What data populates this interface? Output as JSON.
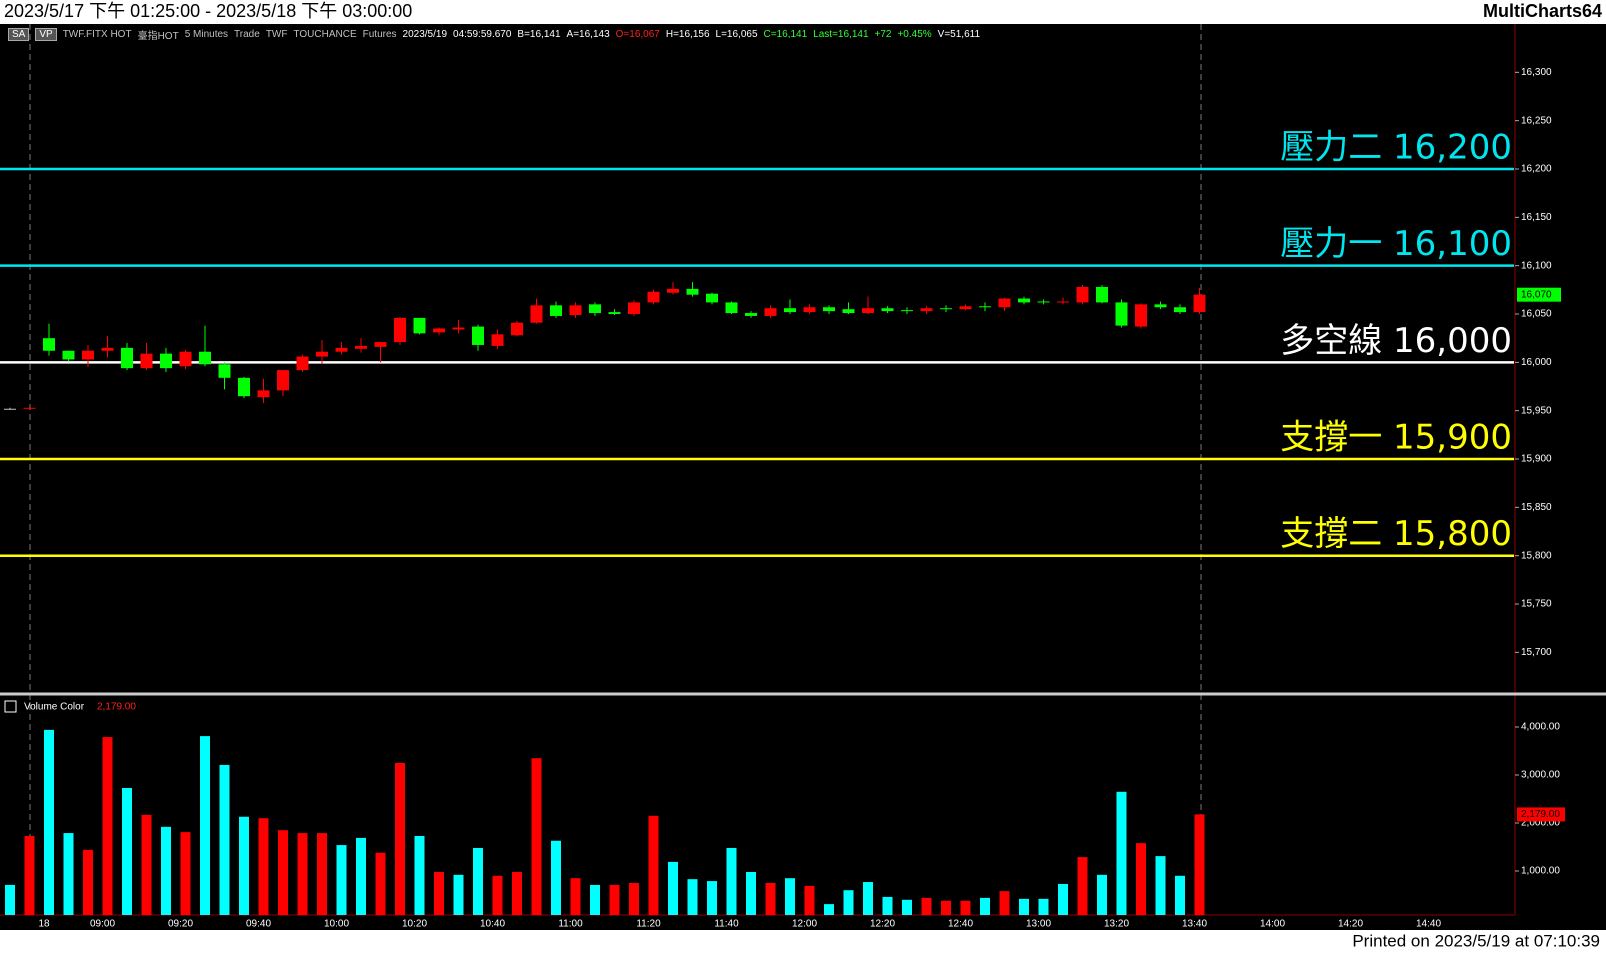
{
  "header": {
    "range": "2023/5/17 下午 01:25:00 - 2023/5/18 下午 03:00:00",
    "app": "MultiCharts64"
  },
  "info_bar": [
    {
      "text": "SA",
      "color": "#ffffff",
      "boxed": true
    },
    {
      "text": "VP",
      "color": "#ffffff",
      "boxed": true
    },
    {
      "text": "TWF.FITX HOT",
      "color": "#c0c0c0"
    },
    {
      "text": "臺指HOT",
      "color": "#c0c0c0"
    },
    {
      "text": "5 Minutes",
      "color": "#c0c0c0"
    },
    {
      "text": "Trade",
      "color": "#c0c0c0"
    },
    {
      "text": "TWF",
      "color": "#c0c0c0"
    },
    {
      "text": "TOUCHANCE",
      "color": "#c0c0c0"
    },
    {
      "text": "Futures",
      "color": "#c0c0c0"
    },
    {
      "text": "2023/5/19",
      "color": "#ffffff"
    },
    {
      "text": "04:59:59.670",
      "color": "#ffffff"
    },
    {
      "text": "B=16,141",
      "color": "#ffffff"
    },
    {
      "text": "A=16,143",
      "color": "#ffffff"
    },
    {
      "text": "O=16,067",
      "color": "#ff2020"
    },
    {
      "text": "H=16,156",
      "color": "#ffffff"
    },
    {
      "text": "L=16,065",
      "color": "#ffffff"
    },
    {
      "text": "C=16,141",
      "color": "#33ff33"
    },
    {
      "text": "Last=16,141",
      "color": "#33ff33"
    },
    {
      "text": "+72",
      "color": "#33ff33"
    },
    {
      "text": "+0.45%",
      "color": "#33ff33"
    },
    {
      "text": "V=51,611",
      "color": "#ffffff"
    }
  ],
  "footer": "Printed on 2023/5/19 at 07:10:39",
  "chart_data": [
    {
      "type": "candlestick",
      "categories": [
        null,
        null,
        "18",
        null,
        null,
        "09:00",
        null,
        null,
        null,
        "09:20",
        null,
        null,
        null,
        "09:40",
        null,
        null,
        null,
        "10:00",
        null,
        null,
        null,
        "10:20",
        null,
        null,
        null,
        "10:40",
        null,
        null,
        null,
        "11:00",
        null,
        null,
        null,
        "11:20",
        null,
        null,
        null,
        "11:40",
        null,
        null,
        null,
        "12:00",
        null,
        null,
        null,
        "12:20",
        null,
        null,
        null,
        "12:40",
        null,
        null,
        null,
        "13:00",
        null,
        null,
        null,
        "13:20",
        null,
        null,
        null,
        "13:40",
        null,
        null,
        null,
        "14:00",
        null,
        null,
        null,
        "14:20",
        null,
        null,
        null,
        "14:40"
      ],
      "open": [
        15952,
        15952,
        16025,
        16012,
        16003,
        16012,
        16015,
        15994,
        16009,
        15996,
        16011,
        15998,
        15984,
        15964,
        15971,
        15992,
        16006,
        16011,
        16014,
        16016,
        16021,
        16046,
        16031,
        16034,
        16037,
        16017,
        16028,
        16041,
        16059,
        16049,
        16060,
        16052,
        16050,
        16062,
        16072,
        16076,
        16071,
        16062,
        16051,
        16048,
        16056,
        16052,
        16057,
        16055,
        16051,
        16056,
        16054,
        16053,
        16056,
        16055,
        16058,
        16057,
        16066,
        16063,
        16062,
        16062,
        16078,
        16062,
        16037,
        16060,
        16057,
        16052,
        null,
        null,
        null,
        null,
        null,
        null,
        null,
        null,
        null,
        null,
        null,
        null
      ],
      "high": [
        15953,
        15954,
        16040,
        16012,
        16018,
        16027,
        16020,
        16020,
        16015,
        16013,
        16038,
        16000,
        15985,
        15983,
        15992,
        16008,
        16023,
        16021,
        16025,
        16021,
        16047,
        16046,
        16036,
        16044,
        16039,
        16034,
        16043,
        16066,
        16063,
        16062,
        16062,
        16055,
        16064,
        16075,
        16083,
        16083,
        16072,
        16063,
        16053,
        16059,
        16065,
        16060,
        16059,
        16062,
        16068,
        16058,
        16057,
        16058,
        16059,
        16060,
        16062,
        16067,
        16068,
        16065,
        16067,
        16080,
        16080,
        16065,
        16061,
        16063,
        16060,
        16077,
        null,
        null,
        null,
        null,
        null,
        null,
        null,
        null,
        null,
        null,
        null,
        null
      ],
      "low": [
        15951,
        15951,
        16007,
        16001,
        15995,
        16005,
        15992,
        15992,
        15990,
        15993,
        15996,
        15972,
        15963,
        15958,
        15965,
        15990,
        15998,
        16008,
        16010,
        16000,
        16018,
        16029,
        16028,
        16030,
        16012,
        16014,
        16027,
        16040,
        16046,
        16046,
        16048,
        16049,
        16048,
        16060,
        16070,
        16068,
        16060,
        16050,
        16046,
        16046,
        16050,
        16050,
        16050,
        16050,
        16050,
        16051,
        16050,
        16050,
        16052,
        16054,
        16053,
        16053,
        16060,
        16060,
        16060,
        16060,
        16061,
        16036,
        16035,
        16055,
        16050,
        16050,
        null,
        null,
        null,
        null,
        null,
        null,
        null,
        null,
        null,
        null,
        null,
        null
      ],
      "close": [
        15952,
        15953,
        16012,
        16003,
        16012,
        16015,
        15994,
        16009,
        15994,
        16011,
        15998,
        15984,
        15965,
        15971,
        15992,
        16006,
        16011,
        16015,
        16017,
        16021,
        16046,
        16030,
        16035,
        16036,
        16018,
        16029,
        16041,
        16059,
        16048,
        16059,
        16051,
        16050,
        16062,
        16073,
        16076,
        16070,
        16062,
        16051,
        16048,
        16056,
        16052,
        16057,
        16053,
        16051,
        16056,
        16053,
        16053,
        16056,
        16055,
        16058,
        16057,
        16066,
        16062,
        16062,
        16063,
        16078,
        16062,
        16038,
        16060,
        16057,
        16052,
        16070,
        null,
        null,
        null,
        null,
        null,
        null,
        null,
        null,
        null,
        null,
        null,
        null
      ],
      "up_color": "#ff0000",
      "down_color": "#00ff00",
      "flat_color": "#c0c0c0",
      "ylim": [
        15659,
        16350
      ],
      "yticks": [
        {
          "value": 15700,
          "label": "15,700"
        },
        {
          "value": 15750,
          "label": "15,750"
        },
        {
          "value": 15800,
          "label": "15,800"
        },
        {
          "value": 15850,
          "label": "15,850"
        },
        {
          "value": 15900,
          "label": "15,900"
        },
        {
          "value": 15950,
          "label": "15,950"
        },
        {
          "value": 16000,
          "label": "16,000"
        },
        {
          "value": 16050,
          "label": "16,050"
        },
        {
          "value": 16100,
          "label": "16,100"
        },
        {
          "value": 16150,
          "label": "16,150"
        },
        {
          "value": 16200,
          "label": "16,200"
        },
        {
          "value": 16250,
          "label": "16,250"
        },
        {
          "value": 16300,
          "label": "16,300"
        }
      ],
      "levels": [
        {
          "value": 16200,
          "label": "壓力二 16,200",
          "color": "#00e5ee"
        },
        {
          "value": 16100,
          "label": "壓力一 16,100",
          "color": "#00e5ee"
        },
        {
          "value": 16000,
          "label": "多空線 16,000",
          "color": "#ffffff"
        },
        {
          "value": 15900,
          "label": "支撐一 15,900",
          "color": "#ffff00"
        },
        {
          "value": 15800,
          "label": "支撐二 15,800",
          "color": "#ffff00"
        }
      ],
      "last_label": "16,070",
      "last_color": "#00ff00"
    },
    {
      "type": "bar",
      "title": "Volume Color",
      "last_label": "2,179.00",
      "last_color": "#ff0000",
      "values": [
        710,
        1730,
        3940,
        1790,
        1440,
        3790,
        2730,
        2170,
        1920,
        1810,
        3810,
        3210,
        2130,
        2100,
        1850,
        1790,
        1790,
        1540,
        1690,
        1380,
        3250,
        1730,
        980,
        920,
        1480,
        900,
        980,
        3350,
        1630,
        850,
        710,
        710,
        750,
        2150,
        1190,
        830,
        790,
        1480,
        980,
        750,
        850,
        690,
        310,
        600,
        770,
        460,
        400,
        440,
        380,
        380,
        440,
        580,
        420,
        420,
        730,
        1290,
        920,
        2650,
        1580,
        1310,
        900,
        2179,
        null,
        null,
        null,
        null,
        null,
        null,
        null,
        null,
        null,
        null,
        null,
        null
      ],
      "colors": [
        "#00ffff",
        "#ff0000",
        "#00ffff",
        "#00ffff",
        "#ff0000",
        "#ff0000",
        "#00ffff",
        "#ff0000",
        "#00ffff",
        "#ff0000",
        "#00ffff",
        "#00ffff",
        "#00ffff",
        "#ff0000",
        "#ff0000",
        "#ff0000",
        "#ff0000",
        "#00ffff",
        "#00ffff",
        "#ff0000",
        "#ff0000",
        "#00ffff",
        "#ff0000",
        "#00ffff",
        "#00ffff",
        "#ff0000",
        "#ff0000",
        "#ff0000",
        "#00ffff",
        "#ff0000",
        "#00ffff",
        "#ff0000",
        "#ff0000",
        "#ff0000",
        "#00ffff",
        "#00ffff",
        "#00ffff",
        "#00ffff",
        "#00ffff",
        "#ff0000",
        "#00ffff",
        "#ff0000",
        "#00ffff",
        "#00ffff",
        "#00ffff",
        "#00ffff",
        "#00ffff",
        "#ff0000",
        "#ff0000",
        "#ff0000",
        "#00ffff",
        "#ff0000",
        "#00ffff",
        "#00ffff",
        "#00ffff",
        "#ff0000",
        "#00ffff",
        "#00ffff",
        "#ff0000",
        "#00ffff",
        "#00ffff",
        "#ff0000",
        null,
        null,
        null,
        null,
        null,
        null,
        null,
        null,
        null,
        null,
        null,
        null
      ],
      "ylim": [
        0,
        4625
      ],
      "yticks": [
        {
          "value": 1000,
          "label": "1,000.00"
        },
        {
          "value": 2000,
          "label": "2,000.00"
        },
        {
          "value": 3000,
          "label": "3,000.00"
        },
        {
          "value": 4000,
          "label": "4,000.00"
        }
      ]
    }
  ]
}
